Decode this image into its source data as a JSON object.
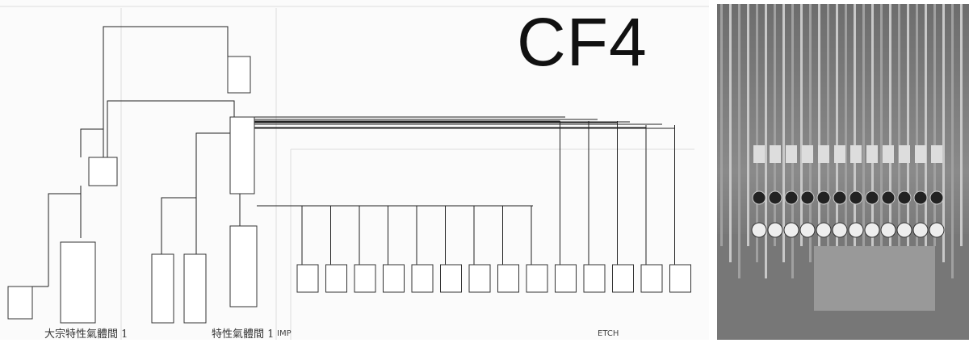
{
  "title": "CF4",
  "sections": {
    "bulk_room": "大宗特性氣體間 1",
    "special_gas_room": "特性氣體間 1",
    "imp": "IMP",
    "etch": "ETCH"
  },
  "valve_box_count": 14,
  "photo": {
    "subject": "gas-cabinet-piping-photo"
  }
}
